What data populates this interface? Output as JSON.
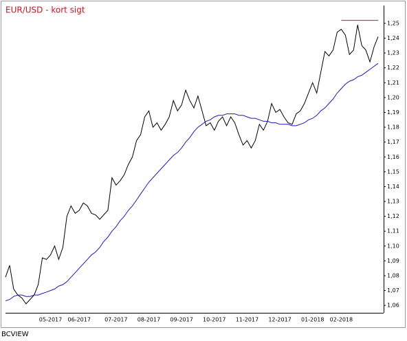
{
  "chart_data": {
    "type": "line",
    "title": "EUR/USD - kort sigt",
    "source": "BCVIEW",
    "categories": [
      null,
      null,
      null,
      null,
      null,
      null,
      null,
      null,
      null,
      null,
      null,
      "05-2017",
      null,
      null,
      null,
      null,
      null,
      null,
      "06-2017",
      null,
      null,
      null,
      null,
      null,
      null,
      null,
      null,
      "07-2017",
      null,
      null,
      null,
      null,
      null,
      null,
      null,
      "08-2017",
      null,
      null,
      null,
      null,
      null,
      null,
      null,
      "09-2017",
      null,
      null,
      null,
      null,
      null,
      null,
      null,
      "10-2017",
      null,
      null,
      null,
      null,
      null,
      null,
      null,
      "11-2017",
      null,
      null,
      null,
      null,
      null,
      null,
      null,
      "12-2017",
      null,
      null,
      null,
      null,
      null,
      null,
      null,
      "01-2018",
      null,
      null,
      null,
      null,
      null,
      null,
      "02-2018",
      null,
      null,
      null,
      null,
      null,
      null,
      null,
      null,
      null
    ],
    "series": [
      {
        "color": "#000000",
        "values": [
          1.079,
          1.087,
          1.071,
          1.067,
          1.065,
          1.061,
          1.064,
          1.067,
          1.074,
          1.092,
          1.091,
          1.094,
          1.1,
          1.091,
          1.099,
          1.12,
          1.127,
          1.122,
          1.124,
          1.129,
          1.127,
          1.122,
          1.121,
          1.118,
          1.121,
          1.124,
          1.146,
          1.141,
          1.144,
          1.148,
          1.155,
          1.16,
          1.171,
          1.175,
          1.187,
          1.191,
          1.18,
          1.183,
          1.178,
          1.182,
          1.187,
          1.198,
          1.191,
          1.195,
          1.205,
          1.198,
          1.193,
          1.201,
          1.191,
          1.181,
          1.183,
          1.178,
          1.184,
          1.187,
          1.181,
          1.187,
          1.183,
          1.175,
          1.168,
          1.171,
          1.166,
          1.171,
          1.182,
          1.178,
          1.184,
          1.196,
          1.19,
          1.192,
          1.187,
          1.183,
          1.182,
          1.189,
          1.191,
          1.196,
          1.203,
          1.21,
          1.203,
          1.217,
          1.231,
          1.228,
          1.232,
          1.244,
          1.246,
          1.242,
          1.229,
          1.232,
          1.249,
          1.235,
          1.232,
          1.224,
          1.234,
          1.241
        ]
      },
      {
        "color": "#1a1ab4",
        "values": [
          1.063,
          1.064,
          1.066,
          1.067,
          1.067,
          1.066,
          1.066,
          1.067,
          1.067,
          1.068,
          1.069,
          1.07,
          1.071,
          1.073,
          1.074,
          1.076,
          1.079,
          1.082,
          1.085,
          1.088,
          1.091,
          1.094,
          1.096,
          1.099,
          1.103,
          1.106,
          1.11,
          1.113,
          1.117,
          1.12,
          1.124,
          1.127,
          1.131,
          1.135,
          1.139,
          1.143,
          1.146,
          1.149,
          1.152,
          1.155,
          1.158,
          1.161,
          1.163,
          1.166,
          1.17,
          1.173,
          1.177,
          1.18,
          1.182,
          1.184,
          1.185,
          1.187,
          1.188,
          1.188,
          1.189,
          1.189,
          1.189,
          1.188,
          1.188,
          1.187,
          1.186,
          1.186,
          1.185,
          1.184,
          1.184,
          1.183,
          1.183,
          1.182,
          1.182,
          1.182,
          1.181,
          1.181,
          1.182,
          1.183,
          1.185,
          1.186,
          1.188,
          1.191,
          1.193,
          1.196,
          1.199,
          1.203,
          1.206,
          1.209,
          1.211,
          1.212,
          1.214,
          1.215,
          1.217,
          1.219,
          1.221,
          1.223
        ]
      },
      {
        "color": "#d01020",
        "values": [
          null,
          null,
          null,
          null,
          null,
          null,
          null,
          null,
          null,
          null,
          null,
          null,
          null,
          null,
          null,
          null,
          null,
          null,
          null,
          null,
          null,
          null,
          null,
          null,
          null,
          null,
          null,
          null,
          null,
          null,
          null,
          null,
          null,
          null,
          null,
          null,
          null,
          null,
          null,
          null,
          null,
          null,
          null,
          null,
          null,
          null,
          null,
          null,
          null,
          null,
          null,
          null,
          null,
          null,
          null,
          null,
          null,
          null,
          null,
          null,
          null,
          null,
          null,
          null,
          null,
          null,
          null,
          null,
          null,
          null,
          null,
          null,
          null,
          null,
          null,
          null,
          null,
          null,
          null,
          null,
          null,
          null,
          1.252,
          1.252,
          1.252,
          1.252,
          1.252,
          1.252,
          1.252,
          1.252,
          1.252,
          1.252
        ]
      }
    ],
    "ylim": [
      1.055,
      1.262
    ],
    "yticks": [
      {
        "value": 1.06,
        "label": "1,06"
      },
      {
        "value": 1.07,
        "label": "1,07"
      },
      {
        "value": 1.08,
        "label": "1,08"
      },
      {
        "value": 1.09,
        "label": "1,09"
      },
      {
        "value": 1.1,
        "label": "1,10"
      },
      {
        "value": 1.11,
        "label": "1,11"
      },
      {
        "value": 1.12,
        "label": "1,12"
      },
      {
        "value": 1.13,
        "label": "1,13"
      },
      {
        "value": 1.14,
        "label": "1,14"
      },
      {
        "value": 1.15,
        "label": "1,15"
      },
      {
        "value": 1.16,
        "label": "1,16"
      },
      {
        "value": 1.17,
        "label": "1,17"
      },
      {
        "value": 1.18,
        "label": "1,18"
      },
      {
        "value": 1.19,
        "label": "1,19"
      },
      {
        "value": 1.2,
        "label": "1,20"
      },
      {
        "value": 1.21,
        "label": "1,21"
      },
      {
        "value": 1.22,
        "label": "1,22"
      },
      {
        "value": 1.23,
        "label": "1,23"
      },
      {
        "value": 1.24,
        "label": "1,24"
      },
      {
        "value": 1.25,
        "label": "1,25"
      }
    ],
    "grid": false
  }
}
